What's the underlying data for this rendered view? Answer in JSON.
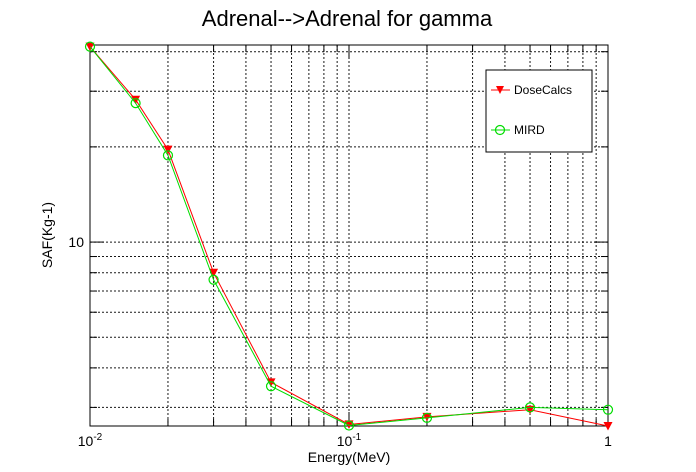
{
  "chart_data": {
    "type": "line",
    "title": "Adrenal-->Adrenal for gamma",
    "xlabel": "Energy(MeV)",
    "ylabel": "SAF(Kg-1)",
    "xscale": "log",
    "yscale": "log",
    "xlim": [
      0.01,
      1
    ],
    "ylim": [
      2.62,
      42
    ],
    "grid": true,
    "legend_position": "top-right",
    "x_tick_labels": [
      "10^-2",
      "10^-1",
      "1"
    ],
    "y_tick_labels": [
      "10"
    ],
    "series": [
      {
        "name": "DoseCalcs",
        "color": "#ff0000",
        "marker": "triangle-down",
        "x": [
          0.01,
          0.015,
          0.02,
          0.03,
          0.05,
          0.1,
          0.2,
          0.5,
          1.0
        ],
        "y": [
          41.5,
          28.2,
          19.6,
          8.0,
          3.6,
          2.65,
          2.8,
          2.95,
          2.62
        ]
      },
      {
        "name": "MIRD",
        "color": "#00dd00",
        "marker": "circle-open",
        "x": [
          0.01,
          0.015,
          0.02,
          0.03,
          0.05,
          0.1,
          0.2,
          0.5,
          1.0
        ],
        "y": [
          41.5,
          27.5,
          18.8,
          7.6,
          3.5,
          2.63,
          2.78,
          3.0,
          2.95
        ]
      }
    ]
  }
}
